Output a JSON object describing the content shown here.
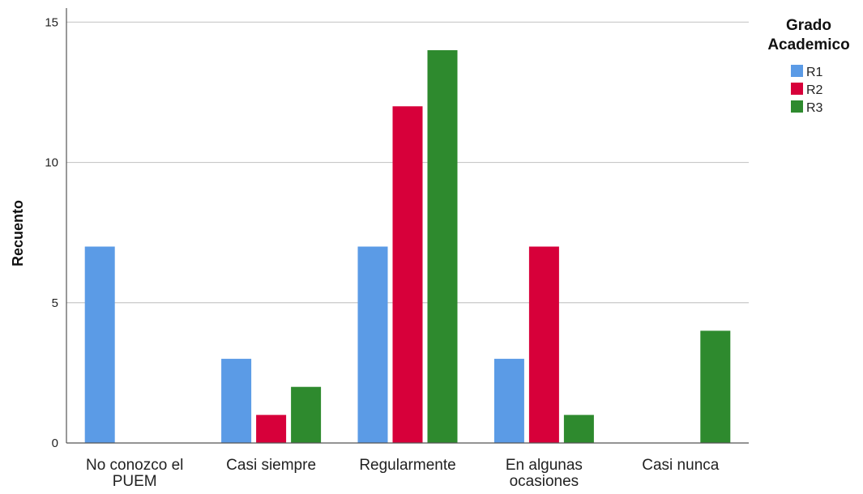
{
  "chart_data": {
    "type": "bar",
    "categories": [
      [
        "No conozco el",
        "PUEM"
      ],
      [
        "Casi siempre"
      ],
      [
        "Regularmente"
      ],
      [
        "En algunas",
        "ocasiones"
      ],
      [
        "Casi nunca"
      ]
    ],
    "series": [
      {
        "name": "R1",
        "color": "#5b9be6",
        "values": [
          7,
          3,
          7,
          3,
          0
        ]
      },
      {
        "name": "R2",
        "color": "#d7003a",
        "values": [
          0,
          1,
          12,
          7,
          0
        ]
      },
      {
        "name": "R3",
        "color": "#2e8a2e",
        "values": [
          0,
          2,
          14,
          1,
          4
        ]
      }
    ],
    "ylabel": "Recuento",
    "ylim": [
      0,
      15.5
    ],
    "yticks": [
      0,
      5,
      10,
      15
    ],
    "grid": true,
    "legend": {
      "title": [
        "Grado",
        "Academico"
      ],
      "placement": "right"
    }
  }
}
